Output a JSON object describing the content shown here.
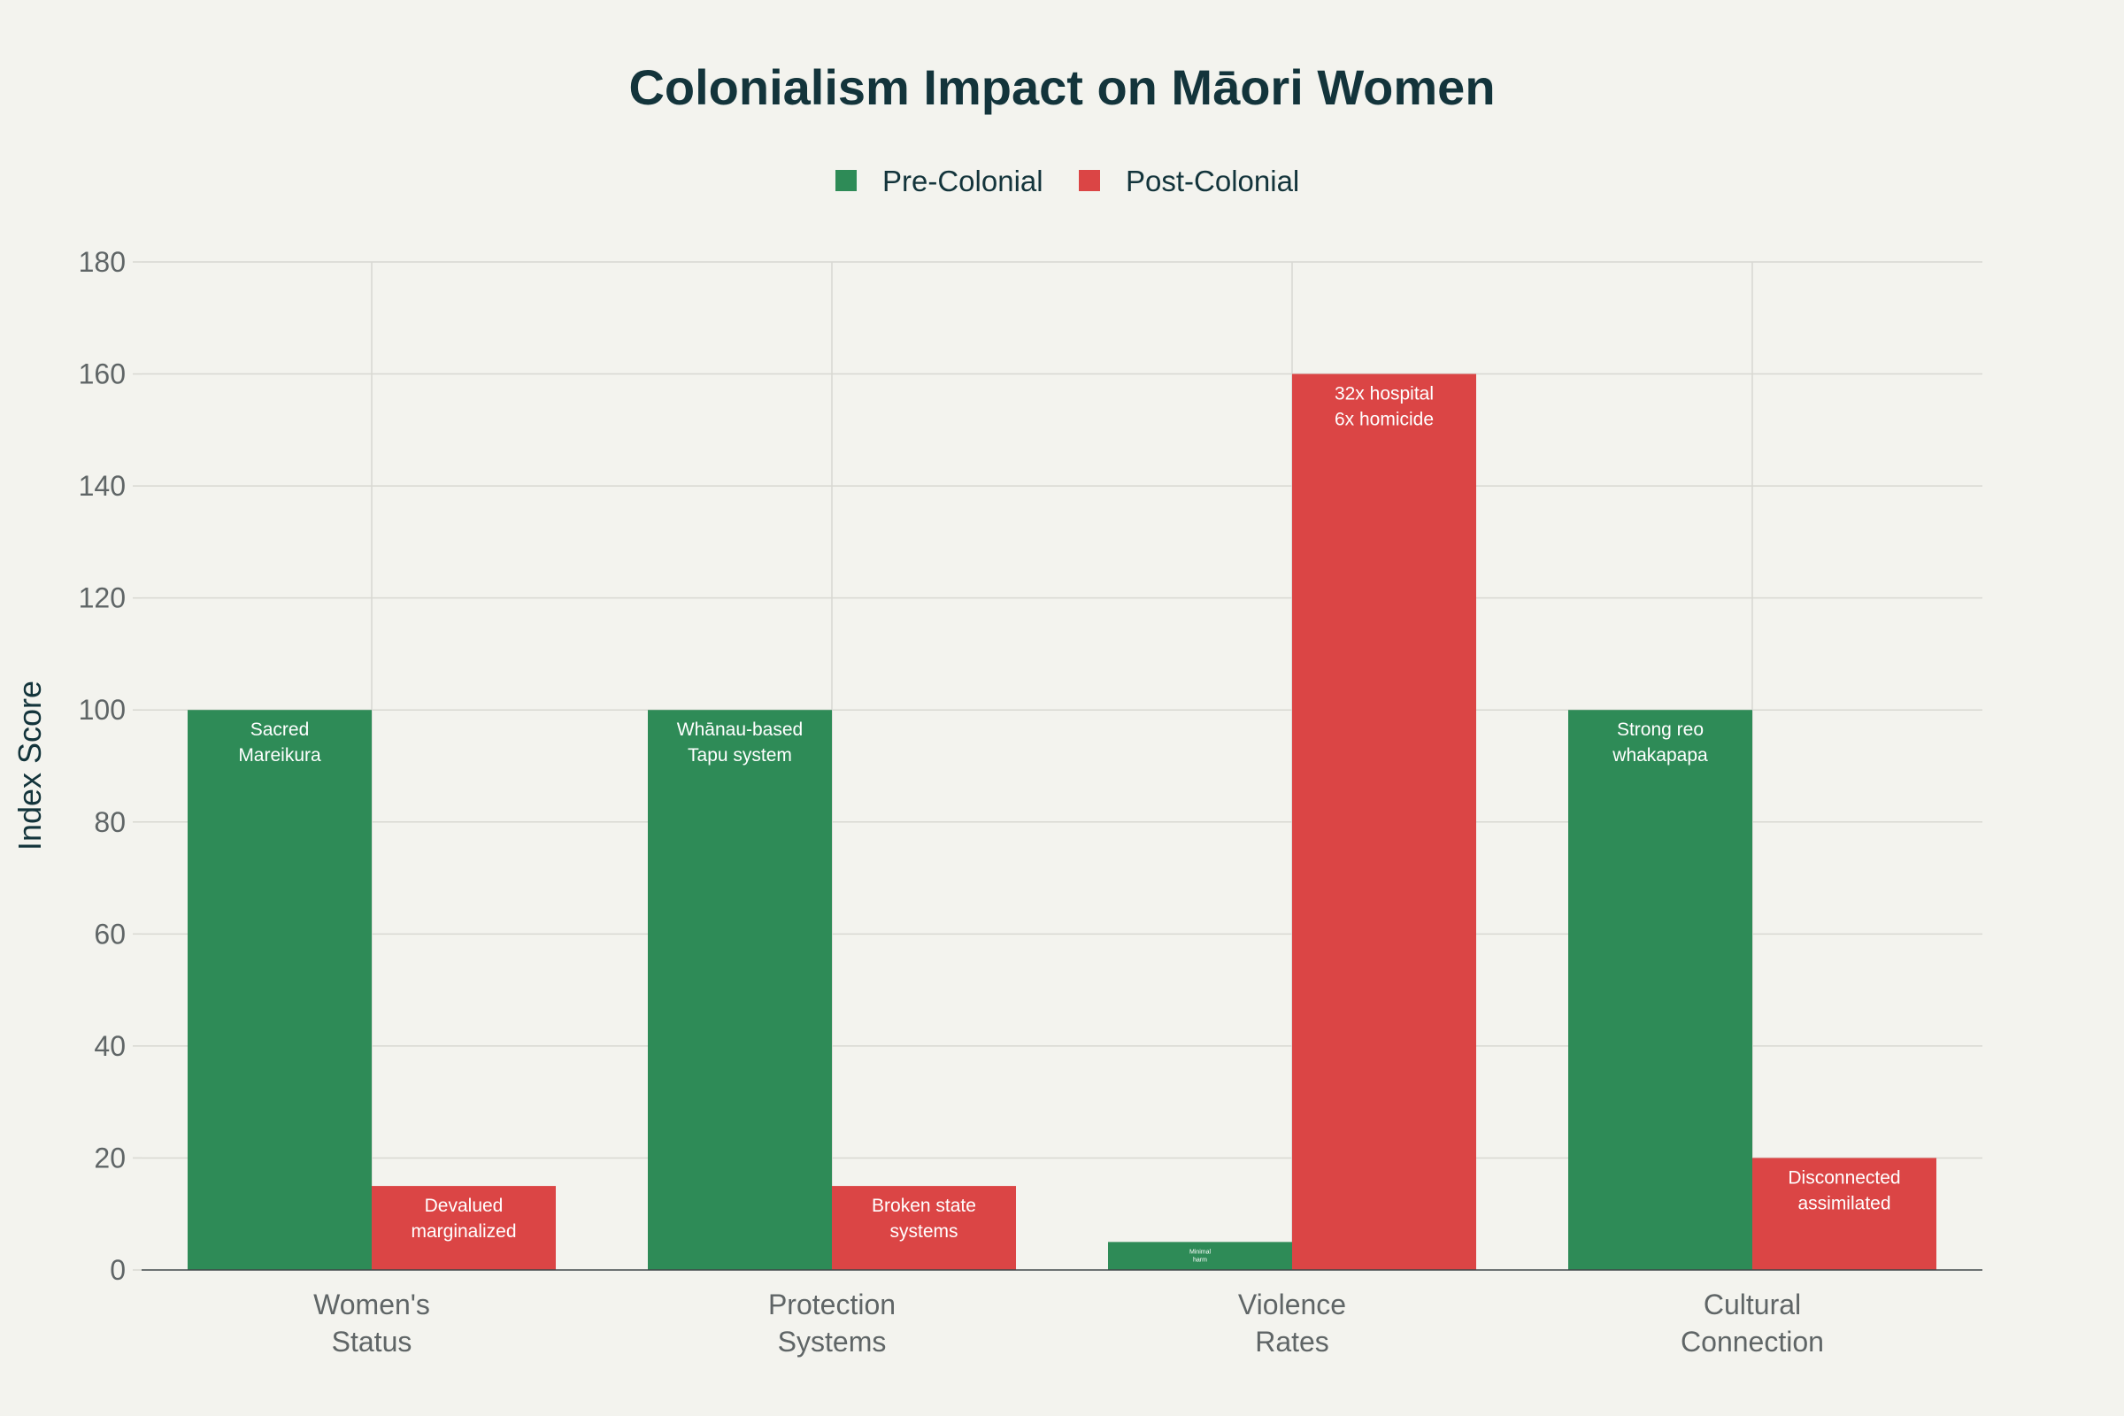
{
  "chart_data": {
    "type": "bar",
    "title": "Colonialism Impact on Māori Women",
    "xlabel": "",
    "ylabel": "Index Score",
    "ylim": [
      0,
      180
    ],
    "yticks": [
      0,
      20,
      40,
      60,
      80,
      100,
      120,
      140,
      160,
      180
    ],
    "grid": true,
    "legend_position": "top-center",
    "categories": [
      [
        "Women's",
        "Status"
      ],
      [
        "Protection",
        "Systems"
      ],
      [
        "Violence",
        "Rates"
      ],
      [
        "Cultural",
        "Connection"
      ]
    ],
    "series": [
      {
        "name": "Pre-Colonial",
        "color": "#2e8b57",
        "values": [
          100,
          100,
          5,
          100
        ],
        "labels": [
          [
            "Sacred",
            "Mareikura"
          ],
          [
            "Whānau-based",
            "Tapu system"
          ],
          [
            "Minimal",
            "harm"
          ],
          [
            "Strong reo",
            "whakapapa"
          ]
        ]
      },
      {
        "name": "Post-Colonial",
        "color": "#db4545",
        "values": [
          15,
          15,
          160,
          20
        ],
        "labels": [
          [
            "Devalued",
            "marginalized"
          ],
          [
            "Broken state",
            "systems"
          ],
          [
            "32x hospital",
            "6x homicide"
          ],
          [
            "Disconnected",
            "assimilated"
          ]
        ]
      }
    ]
  }
}
